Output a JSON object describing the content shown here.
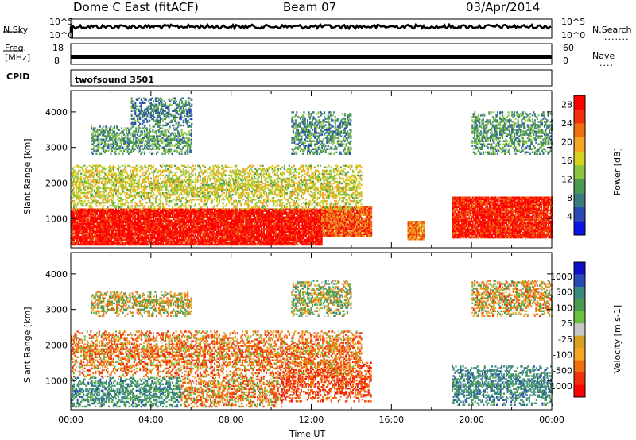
{
  "header": {
    "title": "Dome C East (fitACF)",
    "beam": "Beam 07",
    "date": "03/Apr/2014"
  },
  "top_panels": {
    "nsky_label": "N.Sky",
    "nsky_ticks": [
      "10^5",
      "10^0"
    ],
    "nsearch_label": "N.Search",
    "nsearch_ticks": [
      "10^5",
      "10^0"
    ],
    "freq_label": "Freq.",
    "freq_unit": "[MHz]",
    "freq_ticks": [
      "18",
      "8"
    ],
    "nave_label": "Nave",
    "nave_ticks": [
      "60",
      "0"
    ],
    "cpid_label": "CPID",
    "cpid_value": "twofsound 3501"
  },
  "chart_data": [
    {
      "type": "heatmap",
      "panel": "power",
      "ylabel": "Slant Range [km]",
      "xlabel": "",
      "x_range_hours": [
        0,
        24
      ],
      "ylim": [
        180,
        4600
      ],
      "y_ticks": [
        1000,
        2000,
        3000,
        4000
      ],
      "colorbar": {
        "label": "Power [dB]",
        "ticks": [
          4,
          8,
          12,
          16,
          20,
          24,
          28
        ],
        "range": [
          0,
          30
        ],
        "colors": [
          "#0a14e6",
          "#2a4ab8",
          "#3a7a80",
          "#4a9a50",
          "#8cc63f",
          "#d8d020",
          "#f5a623",
          "#f07010",
          "#f03010",
          "#ff0000"
        ]
      },
      "bands": [
        {
          "t0": 0.0,
          "t1": 12.5,
          "r0": 250,
          "r1": 1250,
          "value": 28
        },
        {
          "t0": 12.5,
          "t1": 15.0,
          "r0": 500,
          "r1": 1350,
          "value": 24
        },
        {
          "t0": 16.8,
          "t1": 17.6,
          "r0": 400,
          "r1": 900,
          "value": 22
        },
        {
          "t0": 19.0,
          "t1": 24.0,
          "r0": 450,
          "r1": 1600,
          "value": 27
        },
        {
          "t0": 0.0,
          "t1": 14.5,
          "r0": 1250,
          "r1": 2500,
          "value": 16
        },
        {
          "t0": 1.0,
          "t1": 6.0,
          "r0": 2800,
          "r1": 3600,
          "value": 10
        },
        {
          "t0": 3.0,
          "t1": 6.0,
          "r0": 3600,
          "r1": 4400,
          "value": 8
        },
        {
          "t0": 11.0,
          "t1": 14.0,
          "r0": 2800,
          "r1": 4000,
          "value": 9
        },
        {
          "t0": 20.0,
          "t1": 24.0,
          "r0": 2800,
          "r1": 4000,
          "value": 10
        }
      ]
    },
    {
      "type": "heatmap",
      "panel": "velocity",
      "ylabel": "Slant Range [km]",
      "xlabel": "Time UT",
      "x_range_hours": [
        0,
        24
      ],
      "ylim": [
        180,
        4600
      ],
      "y_ticks": [
        1000,
        2000,
        3000,
        4000
      ],
      "x_ticks": [
        "00:00",
        "04:00",
        "08:00",
        "12:00",
        "16:00",
        "20:00",
        "00:00"
      ],
      "colorbar": {
        "label": "Velocity [m s-1]",
        "ticks": [
          "1000",
          "500",
          "100",
          "25",
          "-25",
          "-100",
          "-500",
          "-1000"
        ],
        "colors": [
          "#1010c8",
          "#2a4ab8",
          "#3a8a80",
          "#4a9a50",
          "#6ac040",
          "#c8c8c8",
          "#d8a020",
          "#f5a623",
          "#f07010",
          "#f03010",
          "#ff0000"
        ]
      },
      "bands": [
        {
          "t0": 0.0,
          "t1": 5.5,
          "r0": 250,
          "r1": 1100,
          "value": 300
        },
        {
          "t0": 5.5,
          "t1": 10.5,
          "r0": 250,
          "r1": 1100,
          "value": -100
        },
        {
          "t0": 10.5,
          "t1": 15.0,
          "r0": 400,
          "r1": 1500,
          "value": -300
        },
        {
          "t0": 19.0,
          "t1": 24.0,
          "r0": 300,
          "r1": 1400,
          "value": 350
        },
        {
          "t0": 0.0,
          "t1": 14.5,
          "r0": 1100,
          "r1": 2400,
          "value": -150
        },
        {
          "t0": 1.0,
          "t1": 6.0,
          "r0": 2800,
          "r1": 3500,
          "value": 0
        },
        {
          "t0": 11.0,
          "t1": 14.0,
          "r0": 2800,
          "r1": 3800,
          "value": 80
        },
        {
          "t0": 20.0,
          "t1": 24.0,
          "r0": 2800,
          "r1": 3800,
          "value": -50
        }
      ]
    }
  ]
}
